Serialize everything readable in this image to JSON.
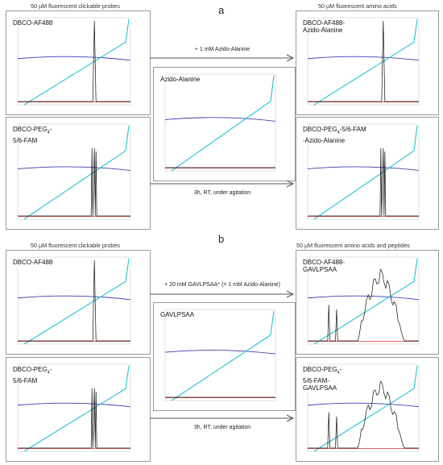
{
  "figure": {
    "section_a": {
      "letter": "a",
      "left_header": "50 µM fluorescent clickable probes",
      "right_header": "50 µM fluorescent amino acids",
      "arrow_top": "+ 1 mM Azido-Alanine",
      "arrow_bottom": "3h, RT, under agitation",
      "panels": {
        "probe1": "DBCO-AF488",
        "probe2": "DBCO-PEG4-\n5/6-FAM",
        "reagent": "Azido-Alanine",
        "product1": "DBCO-AF488-\nAzido-Alanine",
        "product2": "DBCO-PEG4-5/6-FAM\n-Azido-Alanine"
      }
    },
    "section_b": {
      "letter": "b",
      "left_header": "50 µM fluorescent clickable probes",
      "right_header": "50 µM fluorescent amino acids and peptides",
      "arrow_top": "+ 20 mM GAVLPSAA* (= 1 mM Azido-Alanine)",
      "arrow_bottom": "3h, RT, under agitation",
      "panels": {
        "probe1": "DBCO-AF488",
        "probe2": "DBCO-PEG4-\n5/6-FAM",
        "reagent": "GAVLPSAA",
        "product1": "DBCO-AF488-\nGAVLPSAA",
        "product2": "DBCO-PEG4-\n5/6-FAM-\nGAVLPSAA"
      }
    },
    "colors": {
      "gradient_line": "#22c4d4",
      "pressure_line": "#3b3fb0",
      "fluorescence_trace": "#111111",
      "baseline_trace": "#e03030",
      "frame": "#9a9a9a"
    }
  }
}
